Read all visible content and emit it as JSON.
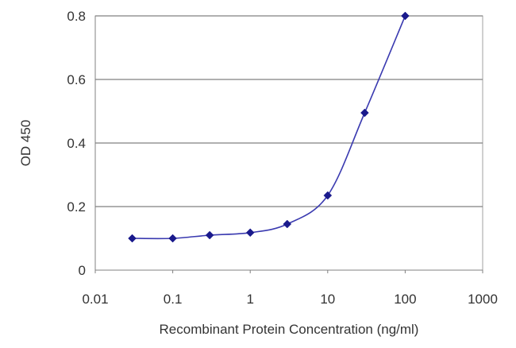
{
  "chart_data": {
    "type": "line",
    "xlabel": "Recombinant Protein Concentration (ng/ml)",
    "ylabel": "OD 450",
    "x_scale": "log",
    "xlim": [
      0.01,
      1000
    ],
    "ylim": [
      0,
      0.8
    ],
    "x_ticks": [
      "0.01",
      "0.1",
      "1",
      "10",
      "100",
      "1000"
    ],
    "y_ticks": [
      "0",
      "0.2",
      "0.4",
      "0.6",
      "0.8"
    ],
    "grid": "horizontal",
    "series": [
      {
        "x": [
          0.03,
          0.1,
          0.3,
          1,
          3,
          10,
          30,
          100
        ],
        "y": [
          0.1,
          0.1,
          0.11,
          0.118,
          0.145,
          0.235,
          0.495,
          0.8
        ],
        "color": "#3a3ab0",
        "marker": "diamond"
      }
    ]
  }
}
